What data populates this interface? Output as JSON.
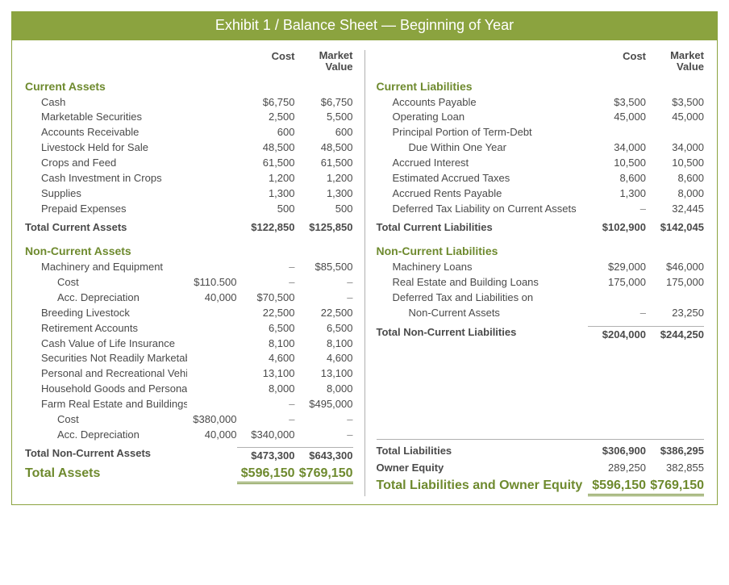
{
  "title": "Exhibit 1 / Balance Sheet — Beginning of Year",
  "headers": {
    "cost": "Cost",
    "market": "Market Value"
  },
  "colors": {
    "accent": "#8ba33f",
    "accentText": "#6e8a2e",
    "bodyText": "#4a4a4a",
    "rule": "#b0b0b0",
    "background": "#ffffff"
  },
  "typography": {
    "titleFontSize": 18,
    "sectionFontSize": 14,
    "bodyFontSize": 13,
    "grandFontSize": 16
  },
  "assets": {
    "current": {
      "heading": "Current Assets",
      "rows": [
        {
          "label": "Cash",
          "cost": "$6,750",
          "market": "$6,750"
        },
        {
          "label": "Marketable Securities",
          "cost": "2,500",
          "market": "5,500"
        },
        {
          "label": "Accounts Receivable",
          "cost": "600",
          "market": "600"
        },
        {
          "label": "Livestock Held for Sale",
          "cost": "48,500",
          "market": "48,500"
        },
        {
          "label": "Crops and Feed",
          "cost": "61,500",
          "market": "61,500"
        },
        {
          "label": "Cash Investment in Crops",
          "cost": "1,200",
          "market": "1,200"
        },
        {
          "label": "Supplies",
          "cost": "1,300",
          "market": "1,300"
        },
        {
          "label": "Prepaid Expenses",
          "cost": "500",
          "market": "500"
        }
      ],
      "total": {
        "label": "Total Current Assets",
        "cost": "$122,850",
        "market": "$125,850"
      }
    },
    "noncurrent": {
      "heading": "Non-Current Assets",
      "rows": [
        {
          "label": "Machinery and Equipment",
          "sub": "",
          "cost": "–",
          "market": "$85,500"
        },
        {
          "label": "Cost",
          "indent": 2,
          "sub": "$110.500",
          "cost": "–",
          "market": "–"
        },
        {
          "label": "Acc. Depreciation",
          "indent": 2,
          "sub": "40,000",
          "cost": "$70,500",
          "market": "–"
        },
        {
          "label": "Breeding Livestock",
          "sub": "",
          "cost": "22,500",
          "market": "22,500"
        },
        {
          "label": "Retirement Accounts",
          "sub": "",
          "cost": "6,500",
          "market": "6,500"
        },
        {
          "label": "Cash Value of Life Insurance",
          "sub": "",
          "cost": "8,100",
          "market": "8,100"
        },
        {
          "label": "Securities Not Readily Marketable",
          "sub": "",
          "cost": "4,600",
          "market": "4,600"
        },
        {
          "label": "Personal and Recreational Vehicles",
          "sub": "",
          "cost": "13,100",
          "market": "13,100"
        },
        {
          "label": "Household Goods and Personal Items",
          "sub": "",
          "cost": "8,000",
          "market": "8,000"
        },
        {
          "label": "Farm Real Estate and Buildings",
          "sub": "",
          "cost": "–",
          "market": "$495,000"
        },
        {
          "label": "Cost",
          "indent": 2,
          "sub": "$380,000",
          "cost": "–",
          "market": "–"
        },
        {
          "label": "Acc. Depreciation",
          "indent": 2,
          "sub": "40,000",
          "cost": "$340,000",
          "market": "–"
        }
      ],
      "total": {
        "label": "Total Non-Current Assets",
        "cost": "$473,300",
        "market": "$643,300"
      }
    },
    "grand": {
      "label": "Total Assets",
      "cost": "$596,150",
      "market": "$769,150"
    }
  },
  "liab": {
    "current": {
      "heading": "Current Liabilities",
      "rows": [
        {
          "label": "Accounts Payable",
          "cost": "$3,500",
          "market": "$3,500"
        },
        {
          "label": "Operating Loan",
          "cost": "45,000",
          "market": "45,000"
        },
        {
          "label": "Principal Portion of Term-Debt",
          "cost": "",
          "market": ""
        },
        {
          "label": "Due Within One Year",
          "indent": 2,
          "cost": "34,000",
          "market": "34,000"
        },
        {
          "label": "Accrued Interest",
          "cost": "10,500",
          "market": "10,500"
        },
        {
          "label": "Estimated Accrued Taxes",
          "cost": "8,600",
          "market": "8,600"
        },
        {
          "label": "Accrued Rents Payable",
          "cost": "1,300",
          "market": "8,000"
        },
        {
          "label": "Deferred Tax Liability on Current Assets",
          "cost": "–",
          "market": "32,445"
        }
      ],
      "total": {
        "label": "Total Current Liabilities",
        "cost": "$102,900",
        "market": "$142,045"
      }
    },
    "noncurrent": {
      "heading": "Non-Current Liabilities",
      "rows": [
        {
          "label": "Machinery Loans",
          "cost": "$29,000",
          "market": "$46,000"
        },
        {
          "label": "Real Estate and Building Loans",
          "cost": "175,000",
          "market": "175,000"
        },
        {
          "label": "Deferred Tax and Liabilities on",
          "cost": "",
          "market": ""
        },
        {
          "label": "Non-Current Assets",
          "indent": 2,
          "cost": "–",
          "market": "23,250"
        }
      ],
      "total": {
        "label": "Total Non-Current Liabilities",
        "cost": "$204,000",
        "market": "$244,250"
      }
    },
    "totalLiab": {
      "label": "Total Liabilities",
      "cost": "$306,900",
      "market": "$386,295"
    },
    "equity": {
      "label": "Owner Equity",
      "cost": "289,250",
      "market": "382,855"
    },
    "grand": {
      "label": "Total Liabilities and Owner Equity",
      "cost": "$596,150",
      "market": "$769,150"
    }
  }
}
